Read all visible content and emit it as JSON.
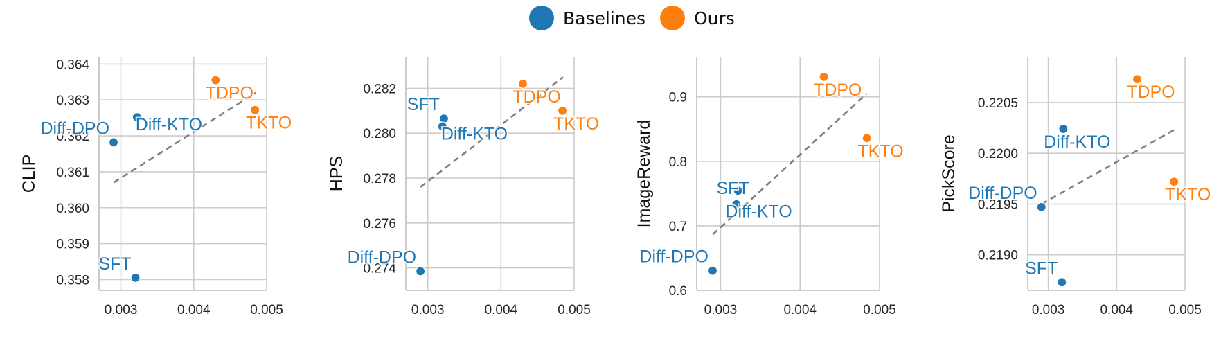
{
  "legend": {
    "items": [
      {
        "label": "Baselines",
        "color": "#1f77b4"
      },
      {
        "label": "Ours",
        "color": "#ff7f0e"
      }
    ]
  },
  "chart_data": [
    {
      "type": "scatter",
      "title": "",
      "xlabel": "",
      "ylabel": "CLIP",
      "xlim": [
        0.0027,
        0.005
      ],
      "ylim": [
        0.3577,
        0.3642
      ],
      "xticks": [
        0.003,
        0.004,
        0.005
      ],
      "xtick_labels": [
        "0.003",
        "0.004",
        "0.005"
      ],
      "yticks": [
        0.358,
        0.359,
        0.36,
        0.361,
        0.362,
        0.363,
        0.364
      ],
      "ytick_labels": [
        "0.358",
        "0.359",
        "0.360",
        "0.361",
        "0.362",
        "0.363",
        "0.364"
      ],
      "trendline": {
        "x": [
          0.0029,
          0.00485
        ],
        "y": [
          0.3607,
          0.3632
        ]
      },
      "points": [
        {
          "label": "SFT",
          "group": "Baselines",
          "x": 0.0032,
          "y": 0.35805,
          "label_pos": "above-left"
        },
        {
          "label": "Diff-DPO",
          "group": "Baselines",
          "x": 0.0029,
          "y": 0.36182,
          "label_pos": "above-left"
        },
        {
          "label": "Diff-KTO",
          "group": "Baselines",
          "x": 0.00322,
          "y": 0.36252,
          "label_pos": "below-right"
        },
        {
          "label": "TDPO",
          "group": "Ours",
          "x": 0.0043,
          "y": 0.36355,
          "label_pos": "below"
        },
        {
          "label": "TKTO",
          "group": "Ours",
          "x": 0.00484,
          "y": 0.36272,
          "label_pos": "below"
        }
      ]
    },
    {
      "type": "scatter",
      "title": "",
      "xlabel": "",
      "ylabel": "HPS",
      "xlim": [
        0.0027,
        0.005
      ],
      "ylim": [
        0.273,
        0.2834
      ],
      "xticks": [
        0.003,
        0.004,
        0.005
      ],
      "xtick_labels": [
        "0.003",
        "0.004",
        "0.005"
      ],
      "yticks": [
        0.274,
        0.276,
        0.278,
        0.28,
        0.282
      ],
      "ytick_labels": [
        "0.274",
        "0.276",
        "0.278",
        "0.280",
        "0.282"
      ],
      "trendline": {
        "x": [
          0.0029,
          0.00485
        ],
        "y": [
          0.2776,
          0.2825
        ]
      },
      "points": [
        {
          "label": "Diff-DPO",
          "group": "Baselines",
          "x": 0.0029,
          "y": 0.27385,
          "label_pos": "above-left"
        },
        {
          "label": "SFT",
          "group": "Baselines",
          "x": 0.00322,
          "y": 0.28065,
          "label_pos": "above-left"
        },
        {
          "label": "Diff-KTO",
          "group": "Baselines",
          "x": 0.0032,
          "y": 0.2803,
          "label_pos": "below-right"
        },
        {
          "label": "TDPO",
          "group": "Ours",
          "x": 0.0043,
          "y": 0.2822,
          "label_pos": "below"
        },
        {
          "label": "TKTO",
          "group": "Ours",
          "x": 0.00484,
          "y": 0.281,
          "label_pos": "below"
        }
      ]
    },
    {
      "type": "scatter",
      "title": "",
      "xlabel": "",
      "ylabel": "ImageReward",
      "xlim": [
        0.0027,
        0.005
      ],
      "ylim": [
        0.6,
        0.962
      ],
      "xticks": [
        0.003,
        0.004,
        0.005
      ],
      "xtick_labels": [
        "0.003",
        "0.004",
        "0.005"
      ],
      "yticks": [
        0.6,
        0.7,
        0.8,
        0.9
      ],
      "ytick_labels": [
        "0.6",
        "0.7",
        "0.8",
        "0.9"
      ],
      "trendline": {
        "x": [
          0.0029,
          0.00484
        ],
        "y": [
          0.6865,
          0.905
        ]
      },
      "points": [
        {
          "label": "Diff-DPO",
          "group": "Baselines",
          "x": 0.0029,
          "y": 0.6305,
          "label_pos": "above-left"
        },
        {
          "label": "SFT",
          "group": "Baselines",
          "x": 0.00322,
          "y": 0.7545,
          "label_pos": "left"
        },
        {
          "label": "Diff-KTO",
          "group": "Baselines",
          "x": 0.0032,
          "y": 0.7335,
          "label_pos": "right"
        },
        {
          "label": "TDPO",
          "group": "Ours",
          "x": 0.0043,
          "y": 0.931,
          "label_pos": "below"
        },
        {
          "label": "TKTO",
          "group": "Ours",
          "x": 0.00484,
          "y": 0.836,
          "label_pos": "below"
        }
      ]
    },
    {
      "type": "scatter",
      "title": "",
      "xlabel": "",
      "ylabel": "PickScore",
      "xlim": [
        0.0027,
        0.005
      ],
      "ylim": [
        0.21865,
        0.22095
      ],
      "xticks": [
        0.003,
        0.004,
        0.005
      ],
      "xtick_labels": [
        "0.003",
        "0.004",
        "0.005"
      ],
      "yticks": [
        0.219,
        0.2195,
        0.22,
        0.2205
      ],
      "ytick_labels": [
        "0.2190",
        "0.2195",
        "0.2200",
        "0.2205"
      ],
      "trendline": {
        "x": [
          0.0029,
          0.00484
        ],
        "y": [
          0.2195,
          0.22023
        ]
      },
      "points": [
        {
          "label": "SFT",
          "group": "Baselines",
          "x": 0.0032,
          "y": 0.21873,
          "label_pos": "above-left"
        },
        {
          "label": "Diff-DPO",
          "group": "Baselines",
          "x": 0.0029,
          "y": 0.21947,
          "label_pos": "above-left"
        },
        {
          "label": "Diff-KTO",
          "group": "Baselines",
          "x": 0.00322,
          "y": 0.22024,
          "label_pos": "below"
        },
        {
          "label": "TDPO",
          "group": "Ours",
          "x": 0.0043,
          "y": 0.22073,
          "label_pos": "below"
        },
        {
          "label": "TKTO",
          "group": "Ours",
          "x": 0.00484,
          "y": 0.21972,
          "label_pos": "below"
        }
      ]
    }
  ]
}
